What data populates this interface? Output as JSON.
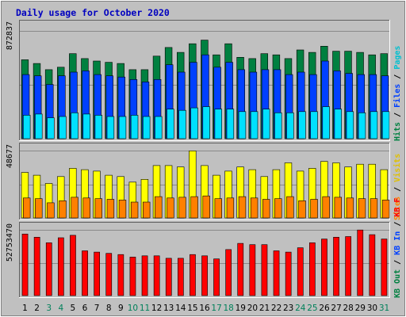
{
  "chart_data": [
    {
      "type": "bar",
      "title": "Daily usage for October 2020",
      "categories": [
        "1",
        "2",
        "3",
        "4",
        "5",
        "6",
        "7",
        "8",
        "9",
        "10",
        "11",
        "12",
        "13",
        "14",
        "15",
        "16",
        "17",
        "18",
        "19",
        "20",
        "21",
        "22",
        "23",
        "24",
        "25",
        "26",
        "27",
        "28",
        "29",
        "30",
        "31"
      ],
      "weekend_days": [
        "3",
        "4",
        "10",
        "11",
        "17",
        "18",
        "24",
        "25",
        "31"
      ],
      "y_max_label": "872837",
      "ylim": [
        0,
        872837
      ],
      "legend": [
        "Pages",
        "Files",
        "Hits"
      ],
      "series": [
        {
          "name": "Hits",
          "color": "#008040",
          "values": [
            640000,
            610000,
            560000,
            580000,
            690000,
            650000,
            630000,
            620000,
            610000,
            560000,
            560000,
            670000,
            740000,
            700000,
            770000,
            800000,
            680000,
            770000,
            660000,
            650000,
            690000,
            680000,
            650000,
            720000,
            700000,
            750000,
            710000,
            710000,
            700000,
            680000,
            690000
          ]
        },
        {
          "name": "Files",
          "color": "#0040ff",
          "values": [
            520000,
            510000,
            440000,
            510000,
            540000,
            550000,
            520000,
            510000,
            500000,
            480000,
            460000,
            480000,
            600000,
            540000,
            620000,
            680000,
            580000,
            620000,
            560000,
            540000,
            560000,
            560000,
            520000,
            540000,
            520000,
            630000,
            550000,
            530000,
            520000,
            520000,
            510000
          ]
        },
        {
          "name": "Pages",
          "color": "#00e0ff",
          "values": [
            190000,
            200000,
            170000,
            180000,
            210000,
            200000,
            190000,
            180000,
            180000,
            190000,
            180000,
            180000,
            240000,
            230000,
            250000,
            260000,
            240000,
            240000,
            220000,
            220000,
            240000,
            210000,
            210000,
            220000,
            220000,
            260000,
            240000,
            220000,
            210000,
            220000,
            220000
          ]
        }
      ]
    },
    {
      "type": "bar",
      "y_max_label": "48677",
      "ylim": [
        0,
        48677
      ],
      "legend": [
        "Visits",
        "Sites"
      ],
      "series": [
        {
          "name": "Visits",
          "color": "#ffff00",
          "values": [
            33000,
            31000,
            25000,
            30000,
            36000,
            35000,
            34000,
            31000,
            30000,
            26000,
            28000,
            38000,
            38000,
            37000,
            48677,
            38000,
            31000,
            34000,
            37000,
            35000,
            30000,
            35000,
            40000,
            34000,
            36000,
            41000,
            40000,
            37000,
            39000,
            39000,
            35000
          ]
        },
        {
          "name": "Sites",
          "color": "#ff8000",
          "values": [
            14500,
            14000,
            11000,
            12500,
            15000,
            14500,
            14000,
            13500,
            13000,
            11500,
            11500,
            15500,
            14500,
            15000,
            15500,
            16000,
            14000,
            14500,
            15500,
            14500,
            13500,
            14000,
            15500,
            12500,
            13500,
            15500,
            15000,
            14500,
            14000,
            14000,
            13000
          ]
        }
      ]
    },
    {
      "type": "bar",
      "y_max_label": "52753470",
      "ylim": [
        0,
        52753470
      ],
      "legend": [
        "KB F",
        "KB In",
        "KB Out"
      ],
      "series": [
        {
          "name": "KB F",
          "color": "#ff0000",
          "values": [
            49500000,
            47000000,
            42500000,
            46500000,
            48500000,
            36000000,
            35000000,
            34000000,
            33000000,
            31000000,
            32000000,
            32000000,
            30000000,
            30000000,
            33000000,
            32000000,
            29500000,
            37000000,
            42000000,
            41000000,
            41000000,
            36000000,
            35000000,
            38500000,
            42500000,
            45500000,
            47000000,
            47500000,
            52753470,
            49000000,
            45500000
          ]
        }
      ]
    }
  ]
}
